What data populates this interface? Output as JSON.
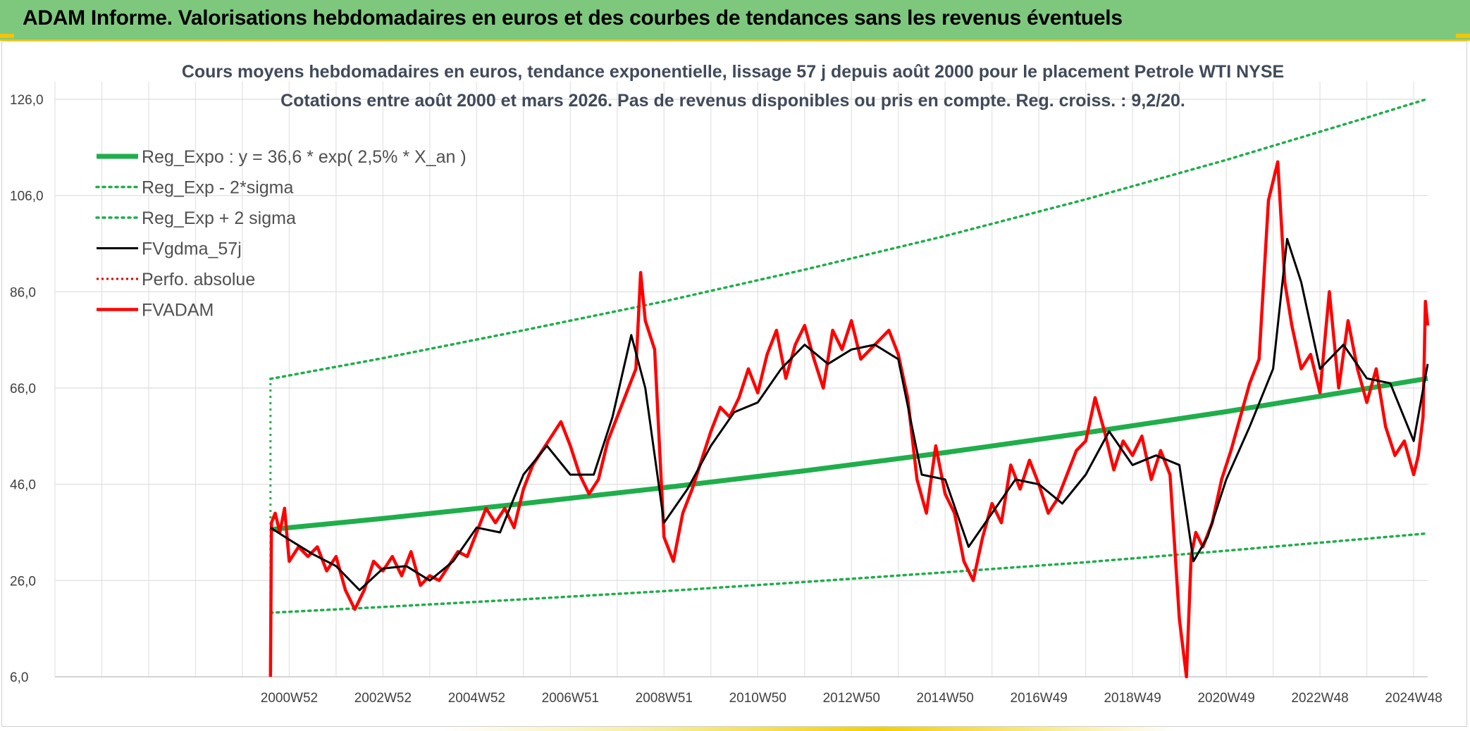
{
  "banner": {
    "title": "ADAM Informe. Valorisations hebdomadaires en euros et des courbes de tendances sans les revenus éventuels"
  },
  "chart_data": {
    "type": "line",
    "title_line1": "Cours moyens hebdomadaires en euros, tendance exponentielle, lissage 57 j depuis août 2000 pour le placement Petrole WTI NYSE",
    "title_line2": "Cotations entre août 2000 et mars 2026. Pas de revenus disponibles ou pris en compte. Reg. croiss. : 9,2/20.",
    "ylim": [
      6,
      126
    ],
    "y_ticks": [
      "126,0",
      "106,0",
      "86,0",
      "66,0",
      "46,0",
      "26,0",
      "6,0"
    ],
    "y_tick_values": [
      126,
      106,
      86,
      66,
      46,
      26,
      6
    ],
    "x_tick_labels": [
      "2000W52",
      "2002W52",
      "2004W52",
      "2006W51",
      "2008W51",
      "2010W50",
      "2012W50",
      "2014W50",
      "2016W49",
      "2018W49",
      "2020W49",
      "2022W48",
      "2024W48"
    ],
    "x_tick_values": [
      2001.0,
      2003.0,
      2005.0,
      2007.0,
      2009.0,
      2011.0,
      2013.0,
      2015.0,
      2017.0,
      2019.0,
      2021.0,
      2023.0,
      2025.0
    ],
    "xlim": [
      1996.0,
      2025.3
    ],
    "grid": true,
    "legend_position": "top-left",
    "colors": {
      "reg_expo": "#1fae4b",
      "sigma": "#1fae4b",
      "fvgdma": "#000000",
      "perfo": "#e00000",
      "fvadam": "#ff0000"
    },
    "series": [
      {
        "name": "Reg_Expo : y = 36,6 * exp( 2,5% *  X_an )",
        "key": "reg_expo",
        "style": "thick-solid",
        "x": [
          2000.6,
          2003.0,
          2006.0,
          2009.0,
          2012.0,
          2015.0,
          2018.0,
          2021.0,
          2024.0,
          2025.3
        ],
        "y": [
          36.6,
          38.9,
          42.0,
          45.3,
          48.8,
          52.6,
          56.7,
          61.1,
          65.9,
          68.0
        ]
      },
      {
        "name": "Reg_Exp - 2*sigma",
        "key": "minus2sigma",
        "style": "dotted",
        "x": [
          2000.6,
          2003.0,
          2006.0,
          2009.0,
          2012.0,
          2015.0,
          2018.0,
          2021.0,
          2024.0,
          2025.3
        ],
        "y": [
          19.3,
          20.5,
          22.1,
          23.8,
          25.7,
          27.7,
          29.8,
          32.2,
          34.7,
          35.8
        ]
      },
      {
        "name": "Reg_Exp + 2 sigma",
        "key": "plus2sigma",
        "style": "dotted",
        "x": [
          2000.6,
          2003.0,
          2006.0,
          2009.0,
          2012.0,
          2015.0,
          2018.0,
          2021.0,
          2024.0,
          2025.3
        ],
        "y": [
          67.9,
          72.2,
          78.0,
          84.0,
          90.6,
          97.6,
          105.2,
          113.4,
          122.2,
          126.1
        ]
      },
      {
        "name": "FVgdma_57j",
        "key": "fvgdma",
        "style": "solid",
        "x": [
          2000.6,
          2001.0,
          2001.5,
          2002.0,
          2002.5,
          2003.0,
          2003.5,
          2004.0,
          2004.5,
          2005.0,
          2005.5,
          2006.0,
          2006.5,
          2007.0,
          2007.5,
          2007.9,
          2008.3,
          2008.6,
          2009.0,
          2009.5,
          2010.0,
          2010.5,
          2011.0,
          2011.5,
          2012.0,
          2012.5,
          2013.0,
          2013.5,
          2014.0,
          2014.5,
          2015.0,
          2015.5,
          2016.0,
          2016.5,
          2017.0,
          2017.5,
          2018.0,
          2018.5,
          2019.0,
          2019.5,
          2020.0,
          2020.3,
          2020.6,
          2021.0,
          2021.5,
          2022.0,
          2022.3,
          2022.6,
          2023.0,
          2023.5,
          2024.0,
          2024.5,
          2025.0,
          2025.3
        ],
        "y": [
          37.0,
          34.5,
          31.5,
          29.0,
          24.0,
          28.5,
          29.0,
          26.0,
          30.0,
          37.0,
          36.0,
          48.0,
          54.0,
          48.0,
          48.0,
          60.0,
          77.0,
          66.0,
          38.0,
          45.0,
          54.0,
          61.0,
          63.0,
          70.0,
          75.0,
          71.0,
          74.0,
          75.0,
          72.0,
          48.0,
          47.0,
          33.0,
          40.0,
          47.0,
          46.0,
          42.0,
          48.0,
          57.0,
          50.0,
          52.0,
          50.0,
          30.0,
          35.0,
          47.0,
          58.0,
          70.0,
          97.0,
          88.0,
          70.0,
          75.0,
          68.0,
          67.0,
          55.0,
          71.0
        ]
      },
      {
        "name": "Perfo. absolue",
        "key": "perfo",
        "style": "dotted",
        "x": [],
        "y": []
      },
      {
        "name": "FVADAM",
        "key": "fvadam",
        "style": "thick-solid",
        "x": [
          2000.6,
          2000.62,
          2000.7,
          2000.8,
          2000.9,
          2001.0,
          2001.2,
          2001.4,
          2001.6,
          2001.8,
          2002.0,
          2002.2,
          2002.4,
          2002.6,
          2002.8,
          2003.0,
          2003.2,
          2003.4,
          2003.6,
          2003.8,
          2004.0,
          2004.2,
          2004.4,
          2004.6,
          2004.8,
          2005.0,
          2005.2,
          2005.4,
          2005.6,
          2005.8,
          2006.0,
          2006.2,
          2006.4,
          2006.6,
          2006.8,
          2007.0,
          2007.2,
          2007.4,
          2007.6,
          2007.8,
          2008.0,
          2008.2,
          2008.4,
          2008.5,
          2008.6,
          2008.8,
          2009.0,
          2009.2,
          2009.4,
          2009.6,
          2009.8,
          2010.0,
          2010.2,
          2010.4,
          2010.6,
          2010.8,
          2011.0,
          2011.2,
          2011.4,
          2011.6,
          2011.8,
          2012.0,
          2012.2,
          2012.4,
          2012.6,
          2012.8,
          2013.0,
          2013.2,
          2013.4,
          2013.6,
          2013.8,
          2014.0,
          2014.2,
          2014.4,
          2014.6,
          2014.8,
          2015.0,
          2015.2,
          2015.4,
          2015.6,
          2015.8,
          2016.0,
          2016.2,
          2016.4,
          2016.6,
          2016.8,
          2017.0,
          2017.2,
          2017.4,
          2017.6,
          2017.8,
          2018.0,
          2018.2,
          2018.4,
          2018.6,
          2018.8,
          2019.0,
          2019.2,
          2019.4,
          2019.6,
          2019.8,
          2020.0,
          2020.15,
          2020.25,
          2020.35,
          2020.5,
          2020.7,
          2020.9,
          2021.1,
          2021.3,
          2021.5,
          2021.7,
          2021.9,
          2022.1,
          2022.25,
          2022.4,
          2022.6,
          2022.8,
          2023.0,
          2023.2,
          2023.4,
          2023.6,
          2023.8,
          2024.0,
          2024.2,
          2024.4,
          2024.6,
          2024.8,
          2025.0,
          2025.1,
          2025.2,
          2025.25,
          2025.3
        ],
        "y": [
          6.0,
          38.0,
          40.0,
          36.0,
          41.0,
          30.0,
          33.0,
          31.0,
          33.0,
          28.0,
          31.0,
          24.0,
          20.0,
          24.0,
          30.0,
          28.0,
          31.0,
          27.0,
          32.0,
          25.0,
          27.0,
          26.0,
          29.0,
          32.0,
          31.0,
          36.0,
          41.0,
          38.0,
          41.0,
          37.0,
          45.0,
          50.0,
          53.0,
          56.0,
          59.0,
          54.0,
          48.0,
          44.0,
          47.0,
          55.0,
          60.0,
          65.0,
          70.0,
          90.0,
          80.0,
          74.0,
          35.0,
          30.0,
          40.0,
          45.0,
          51.0,
          57.0,
          62.0,
          60.0,
          64.0,
          70.0,
          65.0,
          73.0,
          78.0,
          68.0,
          75.0,
          79.0,
          72.0,
          66.0,
          78.0,
          74.0,
          80.0,
          72.0,
          74.0,
          76.0,
          78.0,
          73.0,
          64.0,
          47.0,
          40.0,
          54.0,
          44.0,
          40.0,
          30.0,
          26.0,
          35.0,
          42.0,
          38.0,
          50.0,
          45.0,
          51.0,
          46.0,
          40.0,
          43.0,
          48.0,
          53.0,
          55.0,
          64.0,
          57.0,
          49.0,
          55.0,
          52.0,
          56.0,
          47.0,
          53.0,
          48.0,
          18.0,
          6.0,
          31.0,
          36.0,
          33.0,
          38.0,
          47.0,
          53.0,
          60.0,
          67.0,
          72.0,
          105.0,
          113.0,
          88.0,
          79.0,
          70.0,
          73.0,
          65.0,
          86.0,
          66.0,
          80.0,
          70.0,
          63.0,
          70.0,
          58.0,
          52.0,
          55.0,
          48.0,
          52.0,
          60.0,
          84.0,
          79.0
        ]
      }
    ]
  }
}
